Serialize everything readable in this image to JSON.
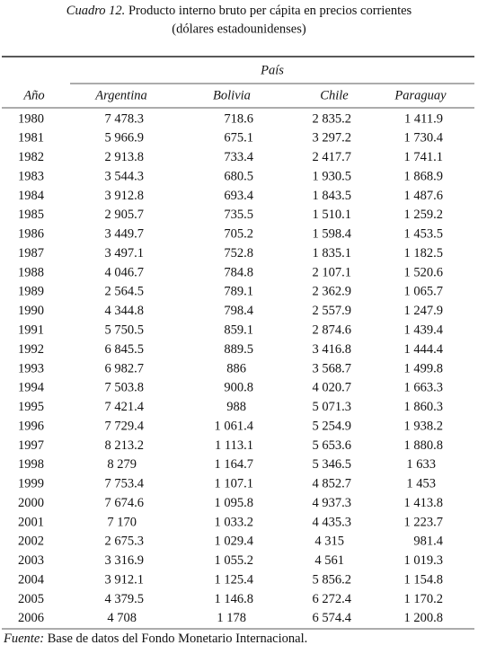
{
  "header": {
    "label": "Cuadro 12.",
    "title": "Producto interno bruto per cápita en precios corrientes",
    "subtitle": "(dólares estadounidenses)"
  },
  "table": {
    "group": "País",
    "columns": [
      "Año",
      "Argentina",
      "Bolivia",
      "Chile",
      "Paraguay"
    ],
    "rows": [
      [
        "1980",
        "7 478.3",
        "718.6",
        "2 835.2",
        "1 411.9"
      ],
      [
        "1981",
        "5 966.9",
        "675.1",
        "3 297.2",
        "1 730.4"
      ],
      [
        "1982",
        "2 913.8",
        "733.4",
        "2 417.7",
        "1 741.1"
      ],
      [
        "1983",
        "3 544.3",
        "680.5",
        "1 930.5",
        "1 868.9"
      ],
      [
        "1984",
        "3 912.8",
        "693.4",
        "1 843.5",
        "1 487.6"
      ],
      [
        "1985",
        "2 905.7",
        "735.5",
        "1 510.1",
        "1 259.2"
      ],
      [
        "1986",
        "3 449.7",
        "705.2",
        "1 598.4",
        "1 453.5"
      ],
      [
        "1987",
        "3 497.1",
        "752.8",
        "1 835.1",
        "1 182.5"
      ],
      [
        "1988",
        "4 046.7",
        "784.8",
        "2 107.1",
        "1 520.6"
      ],
      [
        "1989",
        "2 564.5",
        "789.1",
        "2 362.9",
        "1 065.7"
      ],
      [
        "1990",
        "4 344.8",
        "798.4",
        "2 557.9",
        "1 247.9"
      ],
      [
        "1991",
        "5 750.5",
        "859.1",
        "2 874.6",
        "1 439.4"
      ],
      [
        "1992",
        "6 845.5",
        "889.5",
        "3 416.8",
        "1 444.4"
      ],
      [
        "1993",
        "6 982.7",
        "886",
        "3 568.7",
        "1 499.8"
      ],
      [
        "1994",
        "7 503.8",
        "900.8",
        "4 020.7",
        "1 663.3"
      ],
      [
        "1995",
        "7 421.4",
        "988",
        "5 071.3",
        "1 860.3"
      ],
      [
        "1996",
        "7 729.4",
        "1 061.4",
        "5 254.9",
        "1 938.2"
      ],
      [
        "1997",
        "8 213.2",
        "1 113.1",
        "5 653.6",
        "1 880.8"
      ],
      [
        "1998",
        "8 279",
        "1 164.7",
        "5 346.5",
        "1 633"
      ],
      [
        "1999",
        "7 753.4",
        "1 107.1",
        "4 852.7",
        "1 453"
      ],
      [
        "2000",
        "7 674.6",
        "1 095.8",
        "4 937.3",
        "1 413.8"
      ],
      [
        "2001",
        "7 170",
        "1 033.2",
        "4 435.3",
        "1 223.7"
      ],
      [
        "2002",
        "2 675.3",
        "1 029.4",
        "4 315",
        "981.4"
      ],
      [
        "2003",
        "3 316.9",
        "1 055.2",
        "4 561",
        "1 019.3"
      ],
      [
        "2004",
        "3 912.1",
        "1 125.4",
        "5 856.2",
        "1 154.8"
      ],
      [
        "2005",
        "4 379.5",
        "1 146.8",
        "6 272.4",
        "1 170.2"
      ],
      [
        "2006",
        "4 708",
        "1 178",
        "6 574.4",
        "1 200.8"
      ]
    ]
  },
  "footer": {
    "label": "Fuente:",
    "text": "Base de datos del Fondo Monetario Internacional."
  }
}
